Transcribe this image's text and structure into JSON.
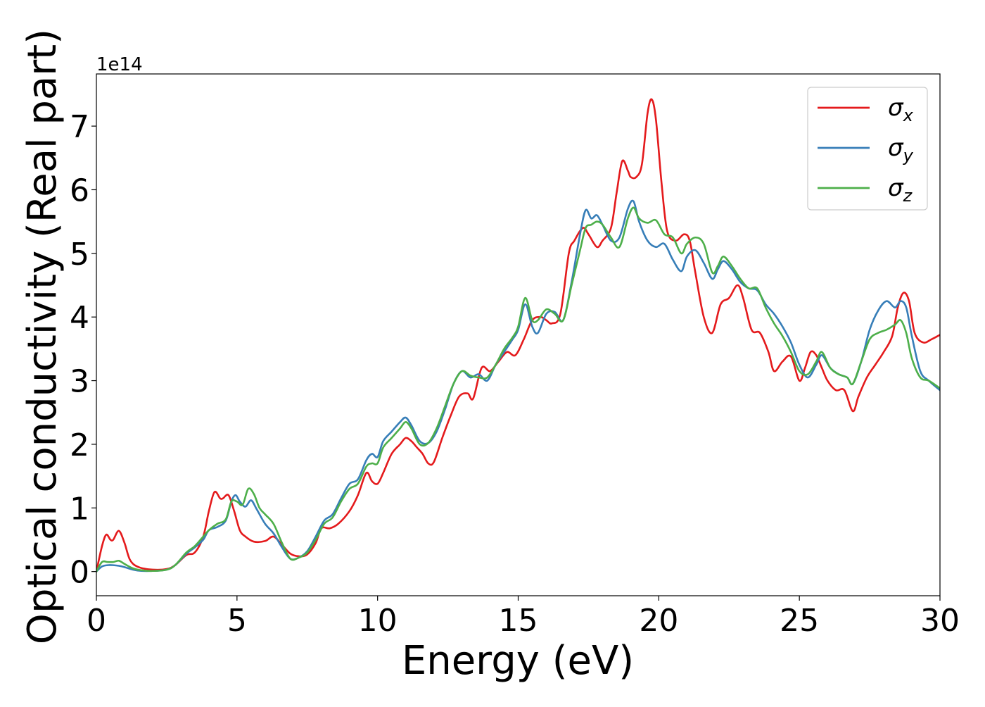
{
  "chart_data": {
    "type": "line",
    "title": "",
    "xlabel": "Energy (eV)",
    "ylabel": "Optical conductivity (Real part)",
    "offset_text": "1e14",
    "xlim": [
      0,
      30
    ],
    "ylim": [
      -0.38,
      7.82
    ],
    "xticks": [
      0,
      5,
      10,
      15,
      20,
      25,
      30
    ],
    "xtick_labels": [
      "0",
      "5",
      "10",
      "15",
      "20",
      "25",
      "30"
    ],
    "yticks": [
      0,
      1,
      2,
      3,
      4,
      5,
      6,
      7
    ],
    "ytick_labels": [
      "0",
      "1",
      "2",
      "3",
      "4",
      "5",
      "6",
      "7"
    ],
    "y_unit_multiplier": "1e14",
    "grid": false,
    "legend_position": "top-right",
    "series": [
      {
        "name": "σx",
        "legend_main": "σ",
        "legend_sub": "x",
        "color": "#e41a1c",
        "x": [
          0,
          0.2,
          0.35,
          0.5,
          0.6,
          0.8,
          1.0,
          1.2,
          1.5,
          2.0,
          2.5,
          2.8,
          3.2,
          3.5,
          3.8,
          4.0,
          4.2,
          4.4,
          4.5,
          4.7,
          4.9,
          5.1,
          5.3,
          5.6,
          6.0,
          6.3,
          6.6,
          6.9,
          7.2,
          7.5,
          7.8,
          8.0,
          8.3,
          8.6,
          9.0,
          9.3,
          9.6,
          9.8,
          10.0,
          10.2,
          10.5,
          10.8,
          11.0,
          11.2,
          11.4,
          11.6,
          11.8,
          12.0,
          12.3,
          12.6,
          12.9,
          13.2,
          13.4,
          13.7,
          14.0,
          14.3,
          14.6,
          14.9,
          15.2,
          15.5,
          15.8,
          16.0,
          16.2,
          16.5,
          16.8,
          17.0,
          17.3,
          17.5,
          17.8,
          18.0,
          18.3,
          18.5,
          18.7,
          18.9,
          19.0,
          19.2,
          19.4,
          19.6,
          19.75,
          19.9,
          20.1,
          20.3,
          20.6,
          20.9,
          21.1,
          21.3,
          21.6,
          21.9,
          22.2,
          22.5,
          22.8,
          23.0,
          23.3,
          23.6,
          23.9,
          24.1,
          24.4,
          24.7,
          25.0,
          25.2,
          25.4,
          25.6,
          25.8,
          26.0,
          26.3,
          26.6,
          26.9,
          27.1,
          27.4,
          27.7,
          28.0,
          28.3,
          28.5,
          28.7,
          28.9,
          29.1,
          29.4,
          29.7,
          30.0
        ],
        "values": [
          0.0,
          0.4,
          0.58,
          0.5,
          0.5,
          0.64,
          0.45,
          0.18,
          0.07,
          0.03,
          0.04,
          0.1,
          0.26,
          0.3,
          0.55,
          0.95,
          1.25,
          1.15,
          1.15,
          1.2,
          0.95,
          0.65,
          0.55,
          0.47,
          0.48,
          0.55,
          0.42,
          0.28,
          0.24,
          0.27,
          0.45,
          0.68,
          0.68,
          0.75,
          0.95,
          1.2,
          1.55,
          1.42,
          1.38,
          1.55,
          1.85,
          2.0,
          2.1,
          2.05,
          1.95,
          1.85,
          1.7,
          1.72,
          2.1,
          2.45,
          2.75,
          2.8,
          2.72,
          3.2,
          3.15,
          3.3,
          3.45,
          3.4,
          3.65,
          3.95,
          4.0,
          3.95,
          3.9,
          4.05,
          5.0,
          5.2,
          5.4,
          5.3,
          5.1,
          5.2,
          5.4,
          5.95,
          6.45,
          6.3,
          6.2,
          6.2,
          6.4,
          7.2,
          7.42,
          7.1,
          6.1,
          5.35,
          5.2,
          5.3,
          5.2,
          4.7,
          4.0,
          3.75,
          4.2,
          4.3,
          4.5,
          4.3,
          3.8,
          3.75,
          3.45,
          3.15,
          3.3,
          3.38,
          3.0,
          3.2,
          3.45,
          3.4,
          3.2,
          3.0,
          2.85,
          2.85,
          2.52,
          2.75,
          3.05,
          3.25,
          3.45,
          3.7,
          4.15,
          4.38,
          4.25,
          3.75,
          3.6,
          3.65,
          3.72
        ]
      },
      {
        "name": "σy",
        "legend_main": "σ",
        "legend_sub": "y",
        "color": "#377eb8",
        "x": [
          0,
          0.2,
          0.4,
          0.6,
          0.8,
          1.0,
          1.3,
          1.6,
          2.0,
          2.5,
          2.8,
          3.2,
          3.5,
          3.8,
          4.0,
          4.3,
          4.6,
          4.8,
          4.95,
          5.1,
          5.3,
          5.5,
          5.7,
          6.0,
          6.3,
          6.6,
          6.9,
          7.2,
          7.5,
          7.8,
          8.1,
          8.4,
          8.7,
          9.0,
          9.3,
          9.6,
          9.8,
          10.0,
          10.2,
          10.5,
          10.8,
          11.0,
          11.2,
          11.5,
          11.8,
          12.1,
          12.4,
          12.7,
          13.0,
          13.3,
          13.6,
          13.9,
          14.2,
          14.5,
          14.8,
          15.0,
          15.25,
          15.5,
          15.7,
          16.0,
          16.3,
          16.6,
          16.9,
          17.2,
          17.4,
          17.6,
          17.8,
          18.0,
          18.3,
          18.6,
          18.9,
          19.1,
          19.3,
          19.6,
          19.9,
          20.2,
          20.5,
          20.8,
          21.0,
          21.3,
          21.6,
          21.9,
          22.1,
          22.3,
          22.6,
          22.9,
          23.2,
          23.5,
          23.8,
          24.1,
          24.4,
          24.7,
          25.0,
          25.3,
          25.6,
          25.8,
          26.1,
          26.4,
          26.7,
          26.9,
          27.2,
          27.5,
          27.8,
          28.1,
          28.4,
          28.6,
          28.8,
          29.0,
          29.3,
          29.6,
          30.0
        ],
        "values": [
          0.0,
          0.08,
          0.1,
          0.1,
          0.09,
          0.07,
          0.03,
          0.01,
          0.01,
          0.03,
          0.1,
          0.28,
          0.38,
          0.5,
          0.65,
          0.7,
          0.8,
          1.1,
          1.2,
          1.1,
          1.02,
          1.12,
          0.98,
          0.75,
          0.6,
          0.38,
          0.2,
          0.22,
          0.32,
          0.55,
          0.8,
          0.9,
          1.15,
          1.38,
          1.45,
          1.75,
          1.85,
          1.8,
          2.05,
          2.2,
          2.35,
          2.42,
          2.3,
          2.05,
          2.02,
          2.2,
          2.55,
          2.95,
          3.15,
          3.05,
          3.1,
          3.0,
          3.25,
          3.45,
          3.65,
          3.8,
          4.2,
          3.85,
          3.75,
          4.05,
          4.08,
          3.95,
          4.55,
          5.3,
          5.68,
          5.55,
          5.6,
          5.45,
          5.2,
          5.25,
          5.7,
          5.82,
          5.5,
          5.2,
          5.1,
          5.15,
          4.9,
          4.72,
          4.95,
          5.05,
          4.85,
          4.6,
          4.75,
          4.88,
          4.75,
          4.55,
          4.45,
          4.42,
          4.2,
          4.05,
          3.85,
          3.6,
          3.25,
          3.05,
          3.25,
          3.4,
          3.2,
          3.1,
          3.05,
          2.95,
          3.3,
          3.8,
          4.1,
          4.25,
          4.15,
          4.25,
          4.15,
          3.7,
          3.15,
          3.0,
          2.85
        ]
      },
      {
        "name": "σz",
        "legend_main": "σ",
        "legend_sub": "z",
        "color": "#4daf4a",
        "x": [
          0,
          0.2,
          0.4,
          0.6,
          0.8,
          1.0,
          1.3,
          1.6,
          2.0,
          2.5,
          2.8,
          3.2,
          3.5,
          3.8,
          4.0,
          4.3,
          4.6,
          4.8,
          5.0,
          5.2,
          5.4,
          5.6,
          5.8,
          6.0,
          6.3,
          6.6,
          6.9,
          7.2,
          7.5,
          7.8,
          8.1,
          8.4,
          8.7,
          9.0,
          9.3,
          9.6,
          9.8,
          10.0,
          10.2,
          10.5,
          10.8,
          11.0,
          11.2,
          11.5,
          11.8,
          12.1,
          12.4,
          12.7,
          13.0,
          13.3,
          13.6,
          13.9,
          14.2,
          14.5,
          14.8,
          15.0,
          15.25,
          15.5,
          15.7,
          16.0,
          16.3,
          16.6,
          16.9,
          17.2,
          17.4,
          17.6,
          17.8,
          18.0,
          18.3,
          18.6,
          18.9,
          19.1,
          19.3,
          19.6,
          19.9,
          20.2,
          20.5,
          20.8,
          21.0,
          21.3,
          21.6,
          21.9,
          22.1,
          22.3,
          22.6,
          22.9,
          23.2,
          23.5,
          23.8,
          24.1,
          24.4,
          24.7,
          25.0,
          25.3,
          25.6,
          25.8,
          26.1,
          26.4,
          26.7,
          26.9,
          27.2,
          27.5,
          27.8,
          28.1,
          28.4,
          28.6,
          28.8,
          29.0,
          29.3,
          29.6,
          30.0
        ],
        "values": [
          0.0,
          0.15,
          0.15,
          0.15,
          0.17,
          0.12,
          0.05,
          0.02,
          0.01,
          0.03,
          0.1,
          0.3,
          0.4,
          0.55,
          0.65,
          0.75,
          0.82,
          1.1,
          1.1,
          1.05,
          1.3,
          1.22,
          1.0,
          0.9,
          0.75,
          0.45,
          0.2,
          0.22,
          0.3,
          0.5,
          0.75,
          0.85,
          1.1,
          1.3,
          1.38,
          1.65,
          1.7,
          1.7,
          1.95,
          2.1,
          2.25,
          2.35,
          2.25,
          2.0,
          2.02,
          2.25,
          2.6,
          2.95,
          3.15,
          3.08,
          3.05,
          3.05,
          3.25,
          3.5,
          3.68,
          3.85,
          4.3,
          3.95,
          3.95,
          4.12,
          4.05,
          3.95,
          4.5,
          5.05,
          5.4,
          5.45,
          5.5,
          5.45,
          5.25,
          5.1,
          5.55,
          5.72,
          5.55,
          5.48,
          5.52,
          5.3,
          5.25,
          5.0,
          5.15,
          5.25,
          5.15,
          4.7,
          4.8,
          4.95,
          4.8,
          4.6,
          4.45,
          4.45,
          4.15,
          3.9,
          3.7,
          3.45,
          3.15,
          3.1,
          3.3,
          3.45,
          3.2,
          3.1,
          3.05,
          2.95,
          3.3,
          3.65,
          3.75,
          3.8,
          3.88,
          3.95,
          3.75,
          3.35,
          3.05,
          3.0,
          2.88
        ]
      }
    ]
  }
}
